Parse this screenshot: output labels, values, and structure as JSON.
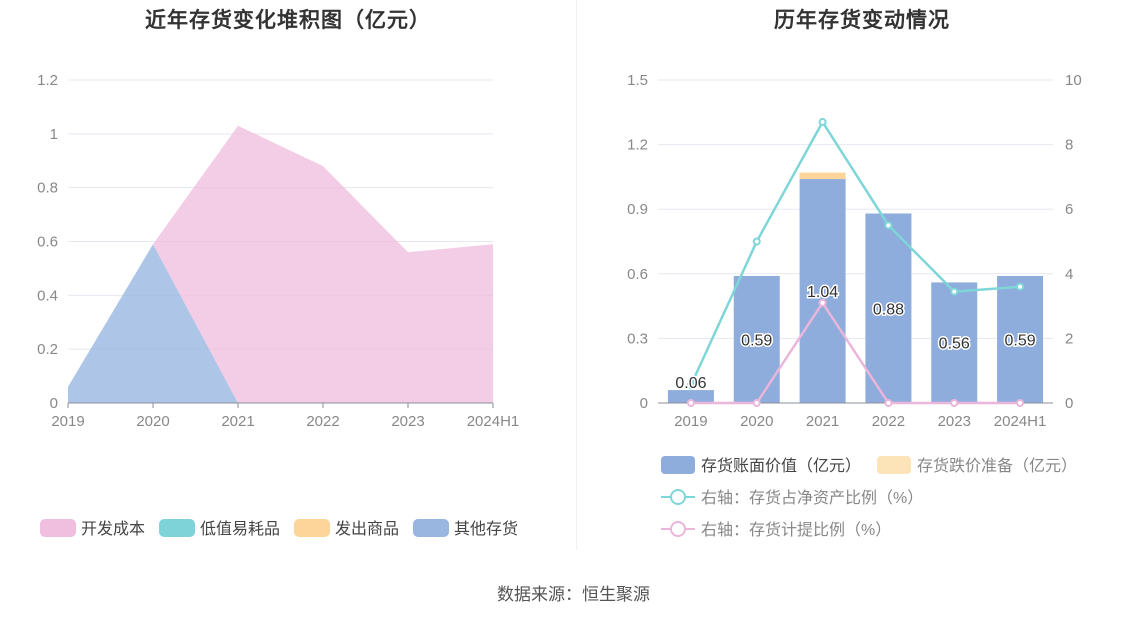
{
  "charts": {
    "left": {
      "title": "近年存货变化堆积图（亿元）",
      "legend": [
        "开发成本",
        "低值易耗品",
        "发出商品",
        "其他存货"
      ],
      "colors": {
        "开发成本": "#f0bfdf",
        "低值易耗品": "#7dd3d8",
        "发出商品": "#fdd49a",
        "其他存货": "#98b6e0"
      }
    },
    "right": {
      "title": "历年存货变动情况",
      "legend": [
        "存货账面价值（亿元）",
        "存货跌价准备（亿元）",
        "右轴：存货占净资产比例（%）",
        "右轴：存货计提比例（%）"
      ],
      "colors": {
        "bar": "#8eacdc",
        "reserve": "#fde3b8",
        "ratio_line": "#7fd6d8",
        "provision_line": "#eab6da"
      }
    }
  },
  "source": "数据来源：恒生聚源",
  "chart_data": [
    {
      "type": "area",
      "title": "近年存货变化堆积图（亿元）",
      "x": [
        "2019",
        "2020",
        "2021",
        "2022",
        "2023",
        "2024H1"
      ],
      "ylim": [
        0,
        1.2
      ],
      "yticks": [
        "0",
        "0.2",
        "0.4",
        "0.6",
        "0.8",
        "1",
        "1.2"
      ],
      "stacked": true,
      "grid": true,
      "legend_position": "bottom",
      "series": [
        {
          "name": "其他存货",
          "values": [
            0.06,
            0.59,
            0,
            0,
            0,
            0
          ]
        },
        {
          "name": "低值易耗品",
          "values": [
            0,
            0,
            0,
            0,
            0,
            0
          ]
        },
        {
          "name": "发出商品",
          "values": [
            0,
            0,
            0,
            0,
            0,
            0
          ]
        },
        {
          "name": "开发成本",
          "values": [
            0,
            0,
            1.03,
            0.88,
            0.56,
            0.59
          ]
        }
      ]
    },
    {
      "type": "bar",
      "title": "历年存货变动情况",
      "categories": [
        "2019",
        "2020",
        "2021",
        "2022",
        "2023",
        "2024H1"
      ],
      "ylim": [
        0,
        1.5
      ],
      "yticks": [
        "0",
        "0.3",
        "0.6",
        "0.9",
        "1.2",
        "1.5"
      ],
      "y2lim": [
        0,
        10
      ],
      "y2ticks": [
        "0",
        "2",
        "4",
        "6",
        "8",
        "10"
      ],
      "grid": true,
      "legend_position": "bottom",
      "series": [
        {
          "name": "存货账面价值（亿元）",
          "values": [
            0.06,
            0.59,
            1.04,
            0.88,
            0.56,
            0.59
          ],
          "labels": [
            "0.06",
            "0.59",
            "1.04",
            "0.88",
            "0.56",
            "0.59"
          ]
        },
        {
          "name": "存货跌价准备（亿元）",
          "values": [
            0,
            0,
            0.03,
            0,
            0,
            0
          ]
        },
        {
          "name": "右轴：存货占净资产比例（%）",
          "axis": "right",
          "values": [
            0.55,
            5.0,
            8.7,
            5.5,
            3.45,
            3.6
          ]
        },
        {
          "name": "右轴：存货计提比例（%）",
          "axis": "right",
          "values": [
            0,
            0,
            3.1,
            0,
            0,
            0
          ]
        }
      ]
    }
  ]
}
